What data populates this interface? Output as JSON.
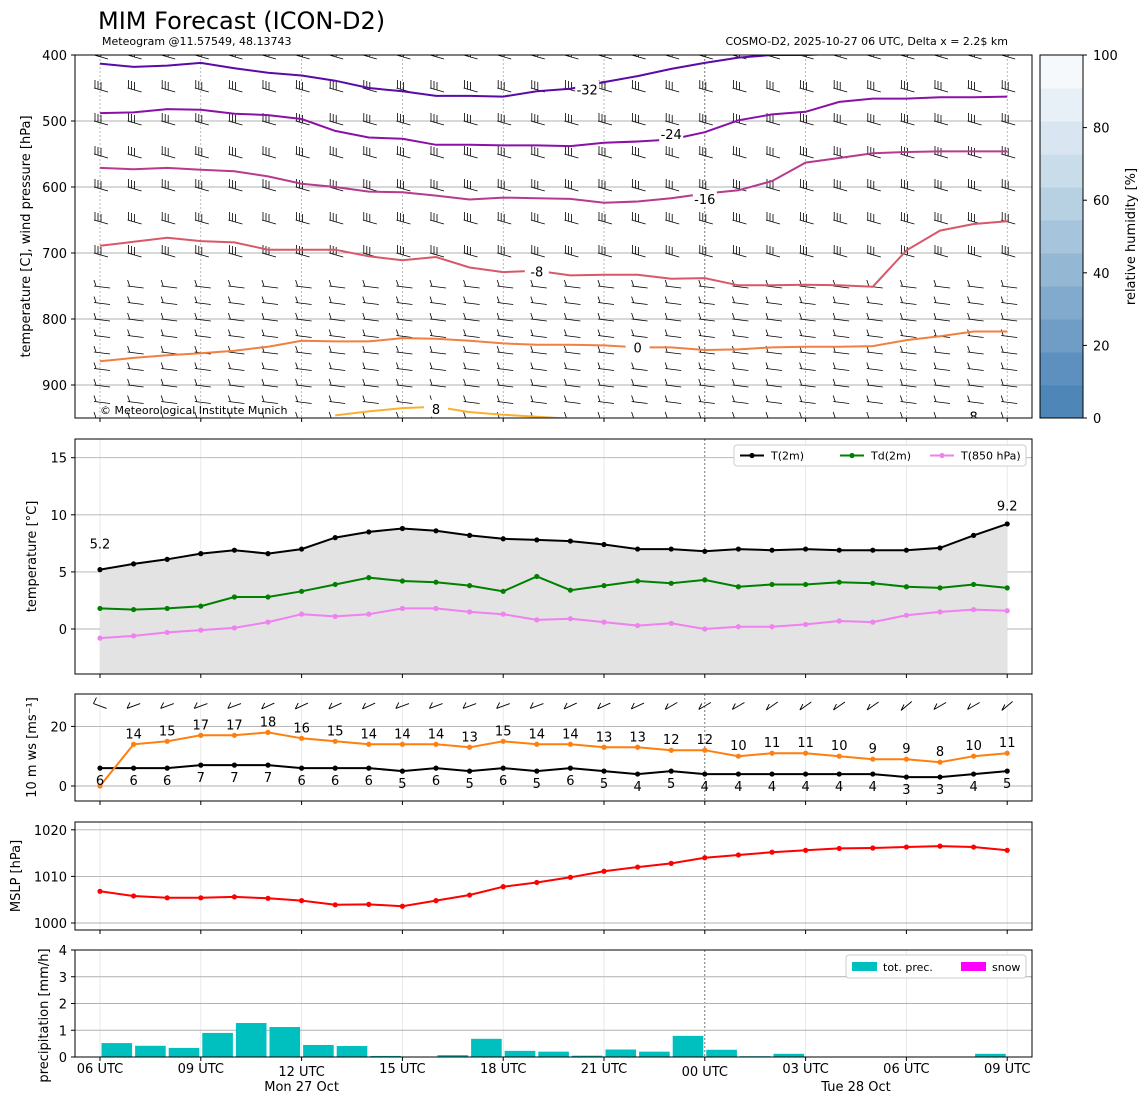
{
  "header": {
    "title": "MIM Forecast (ICON-D2)",
    "subtitle_left": "Meteogram @11.57549, 48.13743",
    "subtitle_right": "COSMO-D2, 2025-10-27 06 UTC, Delta x = 2.2$ km",
    "copyright": "© Meteorological Institute Munich"
  },
  "time_axis": {
    "tick_labels": [
      "06 UTC",
      "09 UTC",
      "12 UTC",
      "15 UTC",
      "18 UTC",
      "21 UTC",
      "00 UTC",
      "03 UTC",
      "06 UTC",
      "09 UTC"
    ],
    "day_labels": [
      "Mon 27 Oct",
      "Tue 28 Oct"
    ]
  },
  "colors": {
    "t2m": "#000000",
    "td2m": "#008000",
    "t850": "#ee82ee",
    "gust": "#ff7f0e",
    "mslp": "#ff0000",
    "precip": "#00bfbf",
    "snow": "#ff00ff",
    "fill": "#e3e3e3"
  },
  "chart_data": [
    {
      "type": "contour",
      "name": "upper-air",
      "ylabel": "temperature [C], wind pressure [hPa]",
      "y_ticks": [
        "400",
        "500",
        "600",
        "700",
        "800",
        "900"
      ],
      "ylim": [
        950,
        400
      ],
      "x_hours": [
        0,
        1,
        2,
        3,
        4,
        5,
        6,
        7,
        8,
        9,
        10,
        11,
        12,
        13,
        14,
        15,
        16,
        17,
        18,
        19,
        20,
        21,
        22,
        23,
        24,
        25,
        26,
        27
      ],
      "isotherms": [
        {
          "label": "-32",
          "color": "#5b0aa8",
          "p": [
            413,
            418,
            416,
            412,
            420,
            427,
            431,
            439,
            450,
            455,
            462,
            462,
            463,
            455,
            451,
            441,
            432,
            421,
            412,
            404,
            400,
            400,
            398,
            396,
            null,
            null,
            null,
            null
          ]
        },
        {
          "label": "-24",
          "color": "#8b10a8",
          "p": [
            488,
            487,
            482,
            483,
            489,
            491,
            497,
            515,
            525,
            527,
            536,
            536,
            537,
            537,
            538,
            533,
            531,
            528,
            517,
            499,
            490,
            486,
            471,
            466,
            466,
            464,
            464,
            463
          ]
        },
        {
          "label": "-16",
          "color": "#b83a8e",
          "p": [
            571,
            573,
            571,
            574,
            576,
            584,
            595,
            600,
            607,
            608,
            613,
            619,
            616,
            617,
            618,
            624,
            622,
            617,
            610,
            605,
            591,
            563,
            556,
            549,
            547,
            546,
            546,
            546
          ]
        },
        {
          "label": "-8",
          "color": "#d8586a",
          "p": [
            689,
            683,
            677,
            682,
            684,
            695,
            695,
            695,
            705,
            711,
            706,
            722,
            729,
            727,
            734,
            733,
            733,
            739,
            738,
            749,
            749,
            748,
            749,
            751,
            696,
            666,
            656,
            652
          ]
        },
        {
          "label": "0",
          "color": "#f08040",
          "p": [
            864,
            859,
            855,
            852,
            848,
            842,
            833,
            834,
            834,
            829,
            830,
            833,
            837,
            839,
            839,
            840,
            843,
            843,
            847,
            846,
            843,
            842,
            842,
            841,
            832,
            826,
            819,
            819
          ]
        },
        {
          "label": "8",
          "color": "#f8b030",
          "p": [
            null,
            null,
            null,
            null,
            null,
            null,
            null,
            946,
            940,
            935,
            933,
            941,
            945,
            948,
            951,
            null,
            null,
            null,
            null,
            null,
            null,
            null,
            null,
            null,
            null,
            null,
            null,
            945
          ]
        }
      ],
      "isotherm_label_positions": [
        {
          "label": "-32",
          "at_hour": 14.5,
          "p": 452
        },
        {
          "label": "-24",
          "at_hour": 17.0,
          "p": 520
        },
        {
          "label": "-16",
          "at_hour": 18.0,
          "p": 618
        },
        {
          "label": "-8",
          "at_hour": 13.0,
          "p": 728
        },
        {
          "label": "0",
          "at_hour": 16.0,
          "p": 843
        },
        {
          "label": "8",
          "at_hour": 10.0,
          "p": 936
        },
        {
          "label": "8",
          "at_hour": 26.0,
          "p": 948
        }
      ],
      "colorbar": {
        "label": "relative humidity [%]",
        "tick_labels": [
          "0",
          "20",
          "40",
          "60",
          "80",
          "100"
        ],
        "colors": [
          "#4f86b8",
          "#5d90bf",
          "#6f9dc6",
          "#82aacd",
          "#94b7d4",
          "#a6c4db",
          "#b8d1e2",
          "#c9dcea",
          "#d9e6f1",
          "#e8f0f7",
          "#f5f9fc"
        ]
      }
    },
    {
      "type": "line",
      "name": "temperature",
      "ylabel": "temperature [$^\\circ$C]",
      "y_ticks": [
        "0",
        "5",
        "10",
        "15"
      ],
      "ylim": [
        -4,
        16.7
      ],
      "x_hours": [
        0,
        1,
        2,
        3,
        4,
        5,
        6,
        7,
        8,
        9,
        10,
        11,
        12,
        13,
        14,
        15,
        16,
        17,
        18,
        19,
        20,
        21,
        22,
        23,
        24,
        25,
        26,
        27
      ],
      "series": [
        {
          "name": "T(2m)",
          "values": [
            5.2,
            5.7,
            6.1,
            6.6,
            6.9,
            6.6,
            7.0,
            8.0,
            8.5,
            8.8,
            8.6,
            8.2,
            7.9,
            7.8,
            7.7,
            7.4,
            7.0,
            7.0,
            6.8,
            7.0,
            6.9,
            7.0,
            6.9,
            6.9,
            6.9,
            7.1,
            8.2,
            9.2
          ]
        },
        {
          "name": "Td(2m)",
          "values": [
            1.8,
            1.7,
            1.8,
            2.0,
            2.8,
            2.8,
            3.3,
            3.9,
            4.5,
            4.2,
            4.1,
            3.8,
            3.3,
            4.6,
            3.4,
            3.8,
            4.2,
            4.0,
            4.3,
            3.7,
            3.9,
            3.9,
            4.1,
            4.0,
            3.7,
            3.6,
            3.9,
            3.6
          ]
        },
        {
          "name": "T(850 hPa)",
          "values": [
            -0.8,
            -0.6,
            -0.3,
            -0.1,
            0.1,
            0.6,
            1.3,
            1.1,
            1.3,
            1.8,
            1.8,
            1.5,
            1.3,
            0.8,
            0.9,
            0.6,
            0.3,
            0.5,
            0.0,
            0.2,
            0.2,
            0.4,
            0.7,
            0.6,
            1.2,
            1.5,
            1.7,
            1.6
          ]
        }
      ],
      "annotations": [
        {
          "text": "5.2",
          "color": "#0000ff",
          "at_hour": 0,
          "y": 7.5
        },
        {
          "text": "9.2",
          "color": "#ff0000",
          "at_hour": 27,
          "y": 10.8
        }
      ]
    },
    {
      "type": "line",
      "name": "wind",
      "ylabel": "10 m ws [ms$^{-1}$]",
      "y_ticks": [
        "0",
        "20"
      ],
      "ylim": [
        -5,
        30
      ],
      "x_hours": [
        0,
        1,
        2,
        3,
        4,
        5,
        6,
        7,
        8,
        9,
        10,
        11,
        12,
        13,
        14,
        15,
        16,
        17,
        18,
        19,
        20,
        21,
        22,
        23,
        24,
        25,
        26,
        27
      ],
      "series": [
        {
          "name": "10 m ws",
          "values": [
            6,
            6,
            6,
            7,
            7,
            7,
            6,
            6,
            6,
            5,
            6,
            5,
            6,
            5,
            6,
            5,
            4,
            5,
            4,
            4,
            4,
            4,
            4,
            4,
            3,
            3,
            4,
            5
          ]
        },
        {
          "name": "gust",
          "values": [
            0,
            14,
            15,
            17,
            17,
            18,
            16,
            15,
            14,
            14,
            14,
            13,
            15,
            14,
            14,
            13,
            13,
            12,
            12,
            10,
            11,
            11,
            10,
            9,
            9,
            8,
            10,
            11
          ]
        }
      ],
      "point_labels_ws": [
        "6",
        "6",
        "6",
        "7",
        "7",
        "7",
        "6",
        "6",
        "6",
        "5",
        "6",
        "5",
        "6",
        "5",
        "6",
        "5",
        "4",
        "5",
        "4",
        "4",
        "4",
        "4",
        "4",
        "4",
        "3",
        "3",
        "4",
        "5"
      ],
      "point_labels_gust": [
        "",
        "14",
        "15",
        "17",
        "17",
        "18",
        "16",
        "15",
        "14",
        "14",
        "14",
        "13",
        "15",
        "14",
        "14",
        "13",
        "13",
        "12",
        "12",
        "10",
        "11",
        "11",
        "10",
        "9",
        "9",
        "8",
        "10",
        "11"
      ],
      "barb_directions_deg": [
        290,
        250,
        250,
        250,
        250,
        245,
        245,
        245,
        245,
        250,
        250,
        250,
        250,
        250,
        245,
        245,
        245,
        240,
        240,
        240,
        235,
        235,
        235,
        235,
        230,
        240,
        240,
        230
      ]
    },
    {
      "type": "line",
      "name": "mslp",
      "ylabel": "MSLP [hPa]",
      "y_ticks": [
        "1000",
        "1010",
        "1020"
      ],
      "ylim": [
        999,
        1022
      ],
      "x_hours": [
        0,
        1,
        2,
        3,
        4,
        5,
        6,
        7,
        8,
        9,
        10,
        11,
        12,
        13,
        14,
        15,
        16,
        17,
        18,
        19,
        20,
        21,
        22,
        23,
        24,
        25,
        26,
        27
      ],
      "series": [
        {
          "name": "MSLP",
          "values": [
            1006.8,
            1005.8,
            1005.4,
            1005.4,
            1005.6,
            1005.3,
            1004.8,
            1003.9,
            1004.0,
            1003.6,
            1004.8,
            1006.0,
            1007.8,
            1008.7,
            1009.8,
            1011.1,
            1012.0,
            1012.8,
            1014.0,
            1014.6,
            1015.2,
            1015.6,
            1016.0,
            1016.1,
            1016.3,
            1016.5,
            1016.3,
            1015.6
          ]
        }
      ]
    },
    {
      "type": "bar",
      "name": "precipitation",
      "ylabel": "precipitation [mm/h]",
      "y_ticks": [
        "0",
        "1",
        "2",
        "3",
        "4"
      ],
      "ylim": [
        0,
        4
      ],
      "x_hours": [
        1,
        2,
        3,
        4,
        5,
        6,
        7,
        8,
        9,
        10,
        11,
        12,
        13,
        14,
        15,
        16,
        17,
        18,
        19,
        20,
        21,
        22,
        23,
        24,
        25,
        26,
        27
      ],
      "series": [
        {
          "name": "tot. prec.",
          "values": [
            0.52,
            0.42,
            0.34,
            0.9,
            1.27,
            1.12,
            0.45,
            0.41,
            0.04,
            0.0,
            0.07,
            0.68,
            0.23,
            0.2,
            0.05,
            0.28,
            0.2,
            0.79,
            0.27,
            0.03,
            0.12,
            0.0,
            0.0,
            0.0,
            0.0,
            0.0,
            0.12
          ]
        },
        {
          "name": "snow",
          "values": [
            0,
            0,
            0,
            0,
            0,
            0,
            0,
            0,
            0,
            0,
            0,
            0,
            0,
            0,
            0,
            0,
            0,
            0,
            0,
            0,
            0,
            0,
            0,
            0,
            0,
            0,
            0
          ]
        }
      ]
    }
  ]
}
